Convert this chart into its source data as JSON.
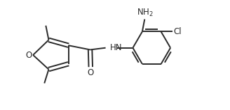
{
  "bg_color": "#ffffff",
  "line_color": "#2a2a2a",
  "line_width": 1.4,
  "font_size": 8.5,
  "fig_width": 3.28,
  "fig_height": 1.58,
  "dpi": 100,
  "xlim": [
    0,
    9.5
  ],
  "ylim": [
    0,
    4.5
  ]
}
